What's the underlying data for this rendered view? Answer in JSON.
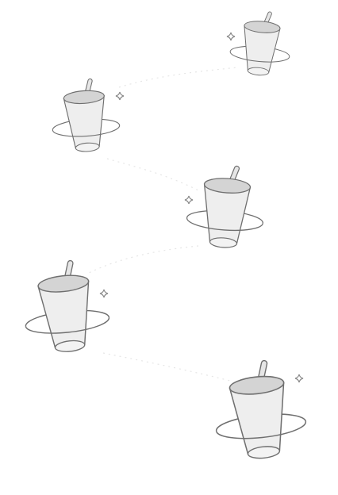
{
  "page": {
    "background_color": "#ffffff",
    "illustration_count": 5
  },
  "palette": {
    "outline": "#6f6f6f",
    "cup_body": "#eeeeee",
    "lid": "#d4d4d4",
    "straw": "#e6e6e6",
    "orbit_ring": "#6f6f6f",
    "sparkle": "#8a8a8a",
    "trail_dots": "#e6e6e6"
  },
  "illustrations": [
    {
      "name": "cup-with-orbit-ring-icon"
    },
    {
      "name": "cup-with-orbit-ring-icon"
    },
    {
      "name": "cup-with-orbit-ring-icon"
    },
    {
      "name": "cup-with-orbit-ring-icon"
    },
    {
      "name": "cup-with-orbit-ring-icon"
    }
  ]
}
